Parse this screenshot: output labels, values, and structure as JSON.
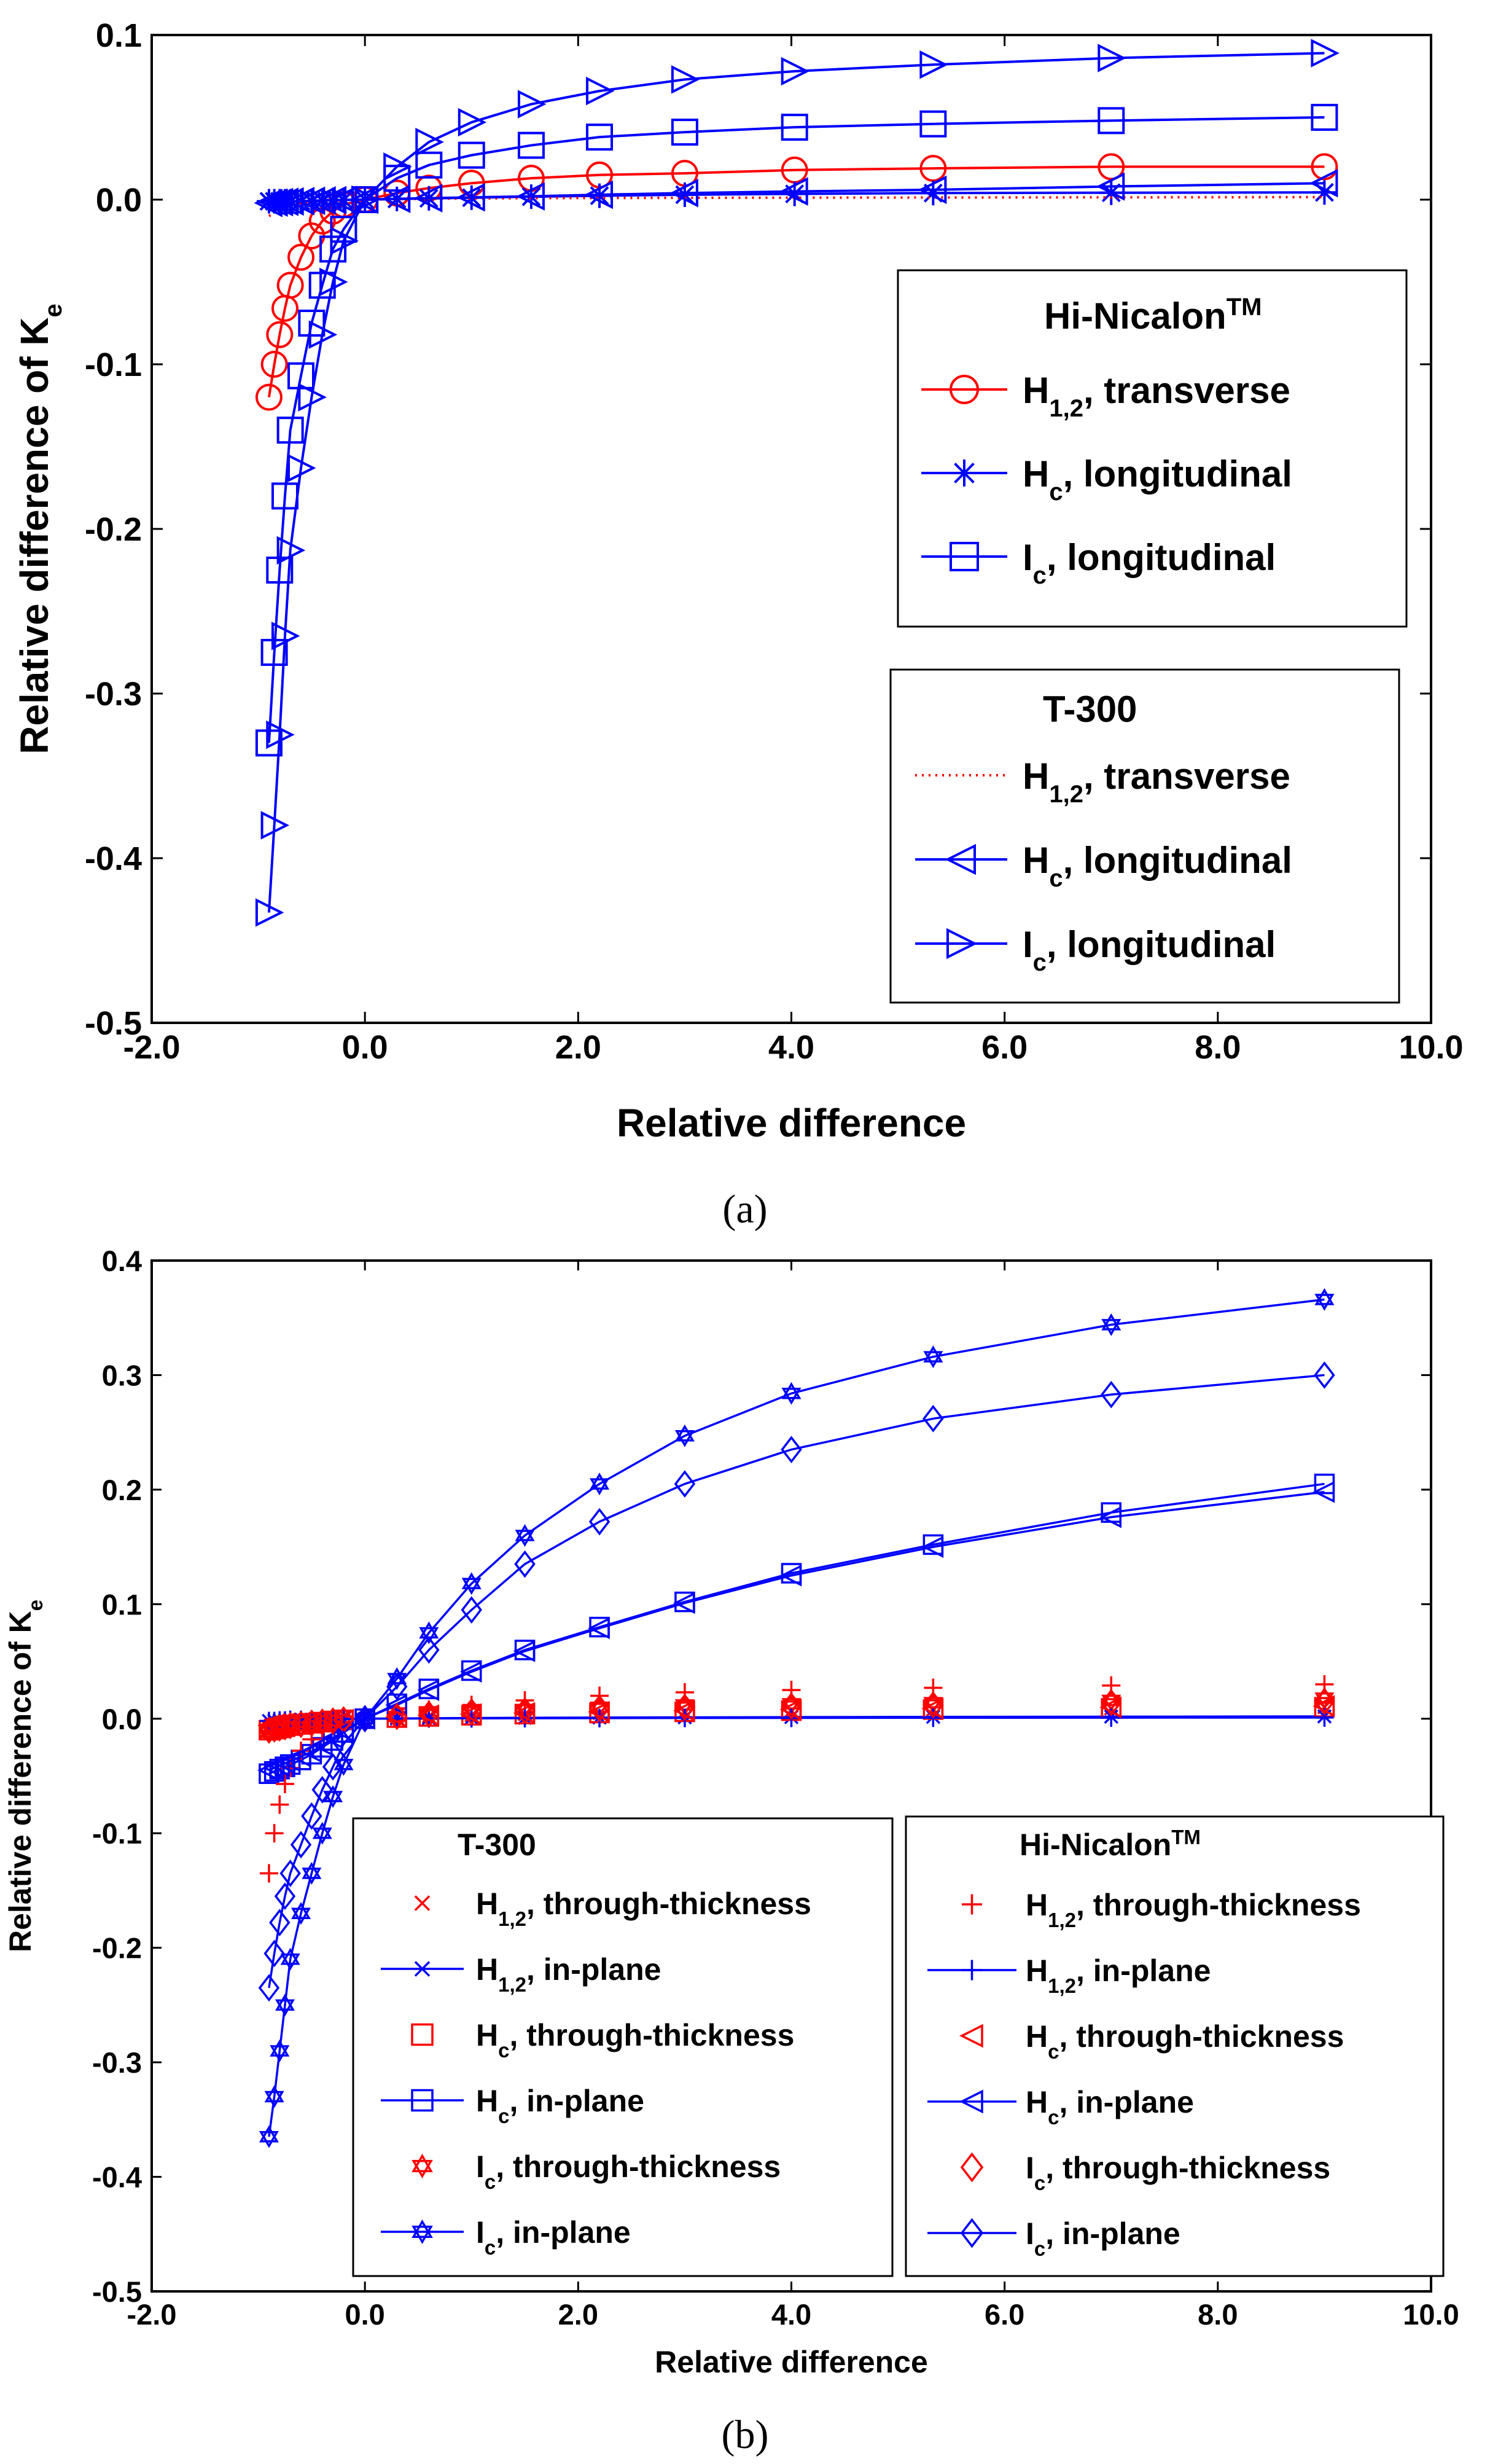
{
  "chart_data": [
    {
      "panel": "a",
      "type": "line",
      "caption": "(a)",
      "xlabel": "Relative difference",
      "ylabel": "Relative difference of K",
      "ylabel_sub": "e",
      "xlim": [
        -2.0,
        10.0
      ],
      "ylim": [
        -0.5,
        0.1
      ],
      "xticks": [
        "-2.0",
        "0.0",
        "2.0",
        "4.0",
        "6.0",
        "8.0",
        "10.0"
      ],
      "yticks": [
        "0.1",
        "0.0",
        "-0.1",
        "-0.2",
        "-0.3",
        "-0.4",
        "-0.5"
      ],
      "x": [
        -0.9,
        -0.85,
        -0.8,
        -0.75,
        -0.7,
        -0.6,
        -0.5,
        -0.4,
        -0.3,
        -0.2,
        0,
        0.3,
        0.6,
        1.0,
        1.56,
        2.2,
        3.0,
        4.03,
        5.33,
        7.0,
        9.0
      ],
      "legend_groups": [
        {
          "title": "Hi-Nicalon",
          "title_sup": "TM",
          "entries": [
            {
              "base": "H",
              "sub": "1,2",
              "text": ", transverse"
            },
            {
              "base": "H",
              "sub": "c",
              "text": ", longitudinal"
            },
            {
              "base": "I",
              "sub": "c",
              "text": ", longitudinal"
            }
          ]
        },
        {
          "title": "T-300",
          "title_sup": "",
          "entries": [
            {
              "base": "H",
              "sub": "1,2",
              "text": ", transverse"
            },
            {
              "base": "H",
              "sub": "c",
              "text": ", longitudinal"
            },
            {
              "base": "I",
              "sub": "c",
              "text": ", longitudinal"
            }
          ]
        }
      ],
      "series": [
        {
          "name": "Hi-Nicalon H1,2 transverse",
          "color": "#ff0000",
          "marker": "circle",
          "values": [
            -0.12,
            -0.1,
            -0.082,
            -0.066,
            -0.052,
            -0.035,
            -0.022,
            -0.013,
            -0.007,
            -0.003,
            0,
            0.004,
            0.007,
            0.01,
            0.013,
            0.015,
            0.016,
            0.018,
            0.019,
            0.02,
            0.02
          ]
        },
        {
          "name": "Hi-Nicalon Hc longitudinal",
          "color": "#0000ff",
          "marker": "star",
          "values": [
            -0.001,
            -0.001,
            -0.001,
            -0.001,
            -0.001,
            -0.001,
            -0.001,
            -0.0005,
            -0.0003,
            -0.0002,
            0,
            0.0004,
            0.0008,
            0.0012,
            0.0018,
            0.0024,
            0.003,
            0.0035,
            0.004,
            0.0042,
            0.0044
          ]
        },
        {
          "name": "Hi-Nicalon Ic longitudinal",
          "color": "#0000ff",
          "marker": "square",
          "values": [
            -0.33,
            -0.275,
            -0.225,
            -0.18,
            -0.14,
            -0.107,
            -0.075,
            -0.052,
            -0.03,
            -0.018,
            0,
            0.013,
            0.021,
            0.027,
            0.033,
            0.038,
            0.041,
            0.044,
            0.046,
            0.048,
            0.05
          ]
        },
        {
          "name": "T-300 H1,2 transverse",
          "color": "#ff0000",
          "marker": "dots",
          "values": [
            -0.01,
            -0.008,
            -0.006,
            -0.004,
            -0.003,
            -0.002,
            -0.001,
            -0.0006,
            -0.0003,
            -0.0001,
            0,
            0.0003,
            0.0005,
            0.0007,
            0.0009,
            0.001,
            0.0011,
            0.0012,
            0.0013,
            0.0014,
            0.0015
          ]
        },
        {
          "name": "T-300 Hc longitudinal",
          "color": "#0000ff",
          "marker": "triangle-left",
          "values": [
            -0.002,
            -0.0018,
            -0.0015,
            -0.0013,
            -0.0011,
            -0.0009,
            -0.0007,
            -0.0005,
            -0.0003,
            -0.0002,
            0,
            0.0005,
            0.0009,
            0.0014,
            0.002,
            0.003,
            0.004,
            0.005,
            0.006,
            0.008,
            0.01
          ]
        },
        {
          "name": "T-300 Ic longitudinal",
          "color": "#0000ff",
          "marker": "triangle-right",
          "values": [
            -0.433,
            -0.38,
            -0.325,
            -0.265,
            -0.213,
            -0.163,
            -0.12,
            -0.082,
            -0.05,
            -0.025,
            0,
            0.02,
            0.035,
            0.047,
            0.058,
            0.066,
            0.073,
            0.078,
            0.082,
            0.086,
            0.089
          ]
        }
      ]
    },
    {
      "panel": "b",
      "type": "line",
      "caption": "(b)",
      "xlabel": "Relative difference",
      "ylabel": "Relative difference of K",
      "ylabel_sub": "e",
      "xlim": [
        -2.0,
        10.0
      ],
      "ylim": [
        -0.5,
        0.4
      ],
      "xticks": [
        "-2.0",
        "0.0",
        "2.0",
        "4.0",
        "6.0",
        "8.0",
        "10.0"
      ],
      "yticks": [
        "0.4",
        "0.3",
        "0.2",
        "0.1",
        "0.0",
        "-0.1",
        "-0.2",
        "-0.3",
        "-0.4",
        "-0.5"
      ],
      "x": [
        -0.9,
        -0.85,
        -0.8,
        -0.75,
        -0.7,
        -0.6,
        -0.5,
        -0.4,
        -0.3,
        -0.2,
        0,
        0.3,
        0.6,
        1.0,
        1.5,
        2.2,
        3.0,
        4.0,
        5.33,
        7.0,
        9.0
      ],
      "legend_groups": [
        {
          "title": "T-300",
          "title_sup": "",
          "entries": [
            {
              "base": "H",
              "sub": "1,2",
              "text": ", through-thickness"
            },
            {
              "base": "H",
              "sub": "1,2",
              "text": ", in-plane"
            },
            {
              "base": "H",
              "sub": "c",
              "text": ", through-thickness"
            },
            {
              "base": "H",
              "sub": "c",
              "text": ", in-plane"
            },
            {
              "base": "I",
              "sub": "c",
              "text": ", through-thickness"
            },
            {
              "base": "I",
              "sub": "c",
              "text": ", in-plane"
            }
          ]
        },
        {
          "title": "Hi-Nicalon",
          "title_sup": "TM",
          "entries": [
            {
              "base": "H",
              "sub": "1,2",
              "text": ", through-thickness"
            },
            {
              "base": "H",
              "sub": "1,2",
              "text": ", in-plane"
            },
            {
              "base": "H",
              "sub": "c",
              "text": ", through-thickness"
            },
            {
              "base": "H",
              "sub": "c",
              "text": ", in-plane"
            },
            {
              "base": "I",
              "sub": "c",
              "text": ", through-thickness"
            },
            {
              "base": "I",
              "sub": "c",
              "text": ", in-plane"
            }
          ]
        }
      ],
      "series": [
        {
          "name": "T-300 H1,2 through-thickness",
          "color": "#ff0000",
          "marker": "x",
          "line": false,
          "values": [
            -0.008,
            -0.007,
            -0.006,
            -0.005,
            -0.004,
            -0.003,
            -0.002,
            -0.0015,
            -0.001,
            -0.0005,
            0,
            0.001,
            0.002,
            0.003,
            0.004,
            0.005,
            0.006,
            0.007,
            0.008,
            0.009,
            0.01
          ]
        },
        {
          "name": "T-300 H1,2 in-plane",
          "color": "#0000ff",
          "marker": "x",
          "line": true,
          "values": [
            -0.002,
            -0.002,
            -0.0015,
            -0.0015,
            -0.001,
            -0.001,
            -0.0008,
            -0.0005,
            -0.0003,
            -0.0002,
            0,
            0.0002,
            0.0004,
            0.0006,
            0.0008,
            0.001,
            0.0012,
            0.0014,
            0.0016,
            0.0018,
            0.002
          ]
        },
        {
          "name": "T-300 Hc through-thickness",
          "color": "#ff0000",
          "marker": "square",
          "line": false,
          "values": [
            -0.01,
            -0.009,
            -0.008,
            -0.007,
            -0.006,
            -0.005,
            -0.004,
            -0.003,
            -0.002,
            -0.001,
            0,
            0.001,
            0.002,
            0.003,
            0.004,
            0.005,
            0.006,
            0.007,
            0.008,
            0.009,
            0.01
          ]
        },
        {
          "name": "T-300 Hc in-plane",
          "color": "#0000ff",
          "marker": "square",
          "line": true,
          "values": [
            -0.048,
            -0.046,
            -0.044,
            -0.042,
            -0.04,
            -0.036,
            -0.031,
            -0.025,
            -0.019,
            -0.012,
            0,
            0.013,
            0.026,
            0.042,
            0.06,
            0.08,
            0.102,
            0.127,
            0.152,
            0.18,
            0.205
          ]
        },
        {
          "name": "T-300 Ic through-thickness",
          "color": "#ff0000",
          "marker": "hexstar",
          "line": false,
          "values": [
            -0.012,
            -0.01,
            -0.009,
            -0.008,
            -0.007,
            -0.006,
            -0.005,
            -0.004,
            -0.003,
            -0.002,
            0,
            0.002,
            0.004,
            0.006,
            0.008,
            0.01,
            0.012,
            0.013,
            0.014,
            0.016,
            0.018
          ]
        },
        {
          "name": "T-300 Ic in-plane",
          "color": "#0000ff",
          "marker": "hexstar",
          "line": true,
          "values": [
            -0.365,
            -0.33,
            -0.29,
            -0.25,
            -0.21,
            -0.17,
            -0.135,
            -0.1,
            -0.068,
            -0.04,
            0,
            0.035,
            0.075,
            0.118,
            0.16,
            0.205,
            0.247,
            0.284,
            0.316,
            0.344,
            0.366
          ]
        },
        {
          "name": "Hi-Nicalon H1,2 through-thickness",
          "color": "#ff0000",
          "marker": "plus",
          "line": false,
          "values": [
            -0.135,
            -0.1,
            -0.075,
            -0.057,
            -0.043,
            -0.028,
            -0.018,
            -0.011,
            -0.006,
            -0.003,
            0,
            0.004,
            0.008,
            0.012,
            0.016,
            0.02,
            0.023,
            0.025,
            0.027,
            0.029,
            0.03
          ]
        },
        {
          "name": "Hi-Nicalon H1,2 in-plane",
          "color": "#0000ff",
          "marker": "plus",
          "line": true,
          "values": [
            -0.002,
            -0.002,
            -0.0015,
            -0.0015,
            -0.001,
            -0.001,
            -0.0008,
            -0.0005,
            -0.0003,
            -0.0002,
            0,
            0.0001,
            0.0002,
            0.0003,
            0.0004,
            0.0005,
            0.0006,
            0.0007,
            0.0008,
            0.0009,
            0.001
          ]
        },
        {
          "name": "Hi-Nicalon Hc through-thickness",
          "color": "#ff0000",
          "marker": "triangle-left",
          "line": false,
          "values": [
            -0.006,
            -0.005,
            -0.005,
            -0.004,
            -0.004,
            -0.003,
            -0.003,
            -0.002,
            -0.0015,
            -0.001,
            0,
            0.0015,
            0.003,
            0.004,
            0.005,
            0.006,
            0.007,
            0.008,
            0.009,
            0.01,
            0.011
          ]
        },
        {
          "name": "Hi-Nicalon Hc in-plane",
          "color": "#0000ff",
          "marker": "triangle-left",
          "line": true,
          "values": [
            -0.045,
            -0.043,
            -0.041,
            -0.039,
            -0.037,
            -0.033,
            -0.029,
            -0.023,
            -0.017,
            -0.011,
            0,
            0.012,
            0.025,
            0.041,
            0.059,
            0.079,
            0.101,
            0.125,
            0.15,
            0.176,
            0.198
          ]
        },
        {
          "name": "Hi-Nicalon Ic through-thickness",
          "color": "#ff0000",
          "marker": "diamond",
          "line": false,
          "values": [
            -0.01,
            -0.009,
            -0.008,
            -0.007,
            -0.006,
            -0.005,
            -0.004,
            -0.003,
            -0.002,
            -0.001,
            0,
            0.002,
            0.004,
            0.006,
            0.007,
            0.009,
            0.01,
            0.011,
            0.012,
            0.014,
            0.015
          ]
        },
        {
          "name": "Hi-Nicalon Ic in-plane",
          "color": "#0000ff",
          "marker": "diamond",
          "line": true,
          "values": [
            -0.235,
            -0.205,
            -0.178,
            -0.155,
            -0.135,
            -0.11,
            -0.085,
            -0.062,
            -0.042,
            -0.022,
            0,
            0.028,
            0.06,
            0.095,
            0.135,
            0.172,
            0.205,
            0.235,
            0.262,
            0.283,
            0.3
          ]
        }
      ]
    }
  ]
}
